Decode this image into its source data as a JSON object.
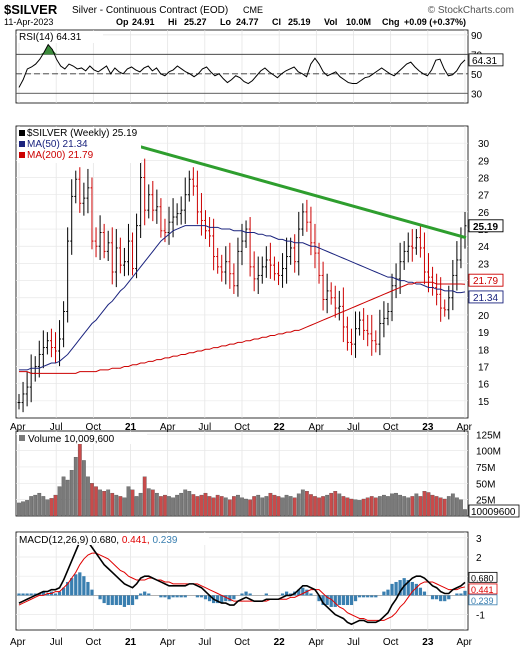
{
  "header": {
    "symbol": "$SILVER",
    "description": "Silver - Continuous Contract (EOD)",
    "exchange": "CME",
    "copyright": "© StockCharts.com",
    "date": "11-Apr-2023",
    "open_label": "Op",
    "open": "24.91",
    "high_label": "Hi",
    "high": "25.27",
    "low_label": "Lo",
    "low": "24.77",
    "close_label": "Cl",
    "close": "25.19",
    "vol_label": "Vol",
    "vol": "10.0M",
    "chg_label": "Chg",
    "chg": "+0.09 (+0.37%)"
  },
  "colors": {
    "up": "#000000",
    "down": "#cc0000",
    "ma50": "#1a237e",
    "ma200": "#cc0000",
    "trendline": "#2e9e2e",
    "rsi_fill": "#3c8c3c",
    "macd": "#000000",
    "signal": "#e00000",
    "hist": "#3a7fb0",
    "vol_up": "#7a7a7a",
    "vol_down": "#c84b4b"
  },
  "chart_data": [
    {
      "type": "line",
      "panel": "RSI",
      "legend": "RSI(14) 64.31",
      "current_label": "64.31",
      "ylim": [
        20,
        95
      ],
      "yticks": [
        "90",
        "70",
        "50",
        "30"
      ],
      "reference_lines": [
        70,
        50,
        30
      ],
      "series": [
        {
          "name": "RSI(14)",
          "values": [
            36,
            44,
            55,
            57,
            60,
            65,
            72,
            80,
            75,
            65,
            58,
            55,
            60,
            58,
            55,
            56,
            53,
            58,
            54,
            52,
            55,
            58,
            50,
            56,
            52,
            50,
            55,
            57,
            54,
            52,
            56,
            58,
            53,
            56,
            50,
            48,
            52,
            54,
            58,
            55,
            52,
            50,
            47,
            50,
            55,
            57,
            52,
            48,
            50,
            45,
            41,
            44,
            48,
            46,
            42,
            40,
            43,
            48,
            53,
            56,
            52,
            49,
            46,
            50,
            53,
            55,
            57,
            52,
            50,
            47,
            60,
            66,
            60,
            52,
            48,
            50,
            52,
            47,
            44,
            41,
            40,
            40,
            43,
            46,
            47,
            50,
            53,
            56,
            53,
            50,
            48,
            52,
            56,
            60,
            62,
            57,
            53,
            50,
            48,
            54,
            64,
            65,
            55,
            48,
            49,
            53,
            60,
            64.31
          ]
        }
      ]
    },
    {
      "type": "line",
      "panel": "Price",
      "legend": [
        "$SILVER (Weekly) 25.19",
        "MA(50) 21.34",
        "MA(200) 21.79"
      ],
      "ylim": [
        14,
        31
      ],
      "yticks": [
        "30",
        "29",
        "28",
        "27",
        "26",
        "25",
        "24",
        "23",
        "22",
        "21",
        "20",
        "19",
        "18",
        "17",
        "16",
        "15"
      ],
      "price_labels": [
        "25.19",
        "21.79",
        "21.34"
      ],
      "series": [
        {
          "name": "$SILVER (Weekly)",
          "values": [
            14.9,
            15.4,
            15.8,
            16.6,
            17.0,
            17.7,
            18.1,
            18.5,
            18.1,
            17.9,
            18.6,
            20.2,
            24.3,
            26.9,
            27.9,
            26.5,
            26.8,
            27.4,
            24.3,
            24.0,
            24.8,
            23.7,
            24.2,
            22.5,
            23.9,
            22.9,
            23.1,
            24.3,
            22.7,
            25.2,
            28.0,
            26.1,
            27.0,
            26.1,
            26.3,
            24.9,
            24.8,
            25.4,
            25.7,
            25.9,
            26.1,
            27.0,
            27.9,
            27.5,
            26.0,
            25.5,
            24.9,
            24.6,
            23.4,
            22.8,
            22.5,
            23.1,
            22.4,
            21.7,
            23.7,
            24.3,
            25.0,
            22.8,
            22.1,
            22.3,
            22.8,
            23.2,
            22.9,
            22.4,
            22.3,
            22.7,
            23.4,
            23.9,
            23.1,
            25.0,
            26.0,
            25.4,
            24.2,
            23.6,
            22.3,
            20.9,
            21.4,
            21.0,
            20.4,
            20.5,
            19.3,
            18.4,
            18.3,
            19.2,
            19.7,
            19.1,
            18.9,
            18.5,
            18.3,
            19.5,
            19.8,
            20.2,
            21.7,
            22.1,
            23.1,
            23.7,
            24.0,
            23.9,
            24.5,
            23.9,
            22.5,
            22.2,
            21.6,
            21.2,
            20.4,
            20.3,
            21.0,
            22.3,
            23.2,
            24.5,
            25.19
          ]
        },
        {
          "name": "MA(50)",
          "values": [
            16.8,
            16.8,
            16.8,
            16.9,
            16.9,
            16.9,
            17.0,
            17.1,
            17.2,
            17.2,
            17.3,
            17.5,
            17.7,
            18.0,
            18.3,
            18.6,
            18.9,
            19.2,
            19.5,
            19.7,
            20.0,
            20.3,
            20.6,
            20.8,
            21.1,
            21.4,
            21.6,
            21.9,
            22.2,
            22.5,
            22.8,
            23.1,
            23.4,
            23.7,
            24.0,
            24.3,
            24.5,
            24.7,
            24.9,
            25.0,
            25.1,
            25.2,
            25.2,
            25.2,
            25.2,
            25.2,
            25.2,
            25.1,
            25.1,
            25.1,
            25.0,
            25.0,
            25.0,
            24.9,
            24.9,
            24.9,
            24.8,
            24.8,
            24.8,
            24.7,
            24.7,
            24.6,
            24.6,
            24.5,
            24.4,
            24.4,
            24.3,
            24.3,
            24.2,
            24.2,
            24.2,
            24.1,
            24.0,
            24.0,
            23.9,
            23.8,
            23.7,
            23.6,
            23.5,
            23.4,
            23.3,
            23.2,
            23.1,
            23.0,
            22.9,
            22.8,
            22.7,
            22.6,
            22.5,
            22.4,
            22.3,
            22.2,
            22.2,
            22.1,
            22.0,
            22.0,
            21.9,
            21.9,
            21.8,
            21.8,
            21.7,
            21.6,
            21.6,
            21.5,
            21.5,
            21.4,
            21.4,
            21.4,
            21.3,
            21.3,
            21.34
          ]
        },
        {
          "name": "MA(200)",
          "values": [
            16.7,
            16.7,
            16.7,
            16.6,
            16.6,
            16.6,
            16.6,
            16.6,
            16.6,
            16.6,
            16.6,
            16.6,
            16.6,
            16.6,
            16.6,
            16.7,
            16.7,
            16.7,
            16.7,
            16.7,
            16.8,
            16.8,
            16.8,
            16.9,
            16.9,
            16.9,
            17.0,
            17.0,
            17.1,
            17.1,
            17.2,
            17.2,
            17.3,
            17.3,
            17.4,
            17.4,
            17.5,
            17.5,
            17.6,
            17.6,
            17.7,
            17.7,
            17.8,
            17.8,
            17.9,
            17.9,
            18.0,
            18.0,
            18.1,
            18.1,
            18.2,
            18.2,
            18.3,
            18.3,
            18.4,
            18.4,
            18.5,
            18.5,
            18.6,
            18.6,
            18.7,
            18.7,
            18.8,
            18.8,
            18.9,
            18.9,
            19.0,
            19.0,
            19.1,
            19.1,
            19.2,
            19.3,
            19.4,
            19.5,
            19.6,
            19.7,
            19.8,
            19.9,
            20.0,
            20.1,
            20.2,
            20.3,
            20.4,
            20.5,
            20.6,
            20.7,
            20.8,
            20.9,
            21.0,
            21.1,
            21.2,
            21.3,
            21.4,
            21.5,
            21.6,
            21.7,
            21.8,
            21.8,
            21.9,
            21.9,
            21.9,
            21.9,
            21.9,
            21.8,
            21.8,
            21.8,
            21.8,
            21.8,
            21.8,
            21.8,
            21.79
          ]
        },
        {
          "name": "trendline",
          "values": [
            30.0,
            24.5
          ]
        }
      ]
    },
    {
      "type": "bar",
      "panel": "Volume",
      "legend": "Volume 10,009,600",
      "ylim": [
        0,
        130
      ],
      "yticks": [
        "125M",
        "100M",
        "75M",
        "50M",
        "25M"
      ],
      "current_label": "10009600",
      "series": [
        {
          "name": "Volume (M)",
          "values": [
            20,
            22,
            24,
            30,
            32,
            35,
            30,
            25,
            27,
            32,
            45,
            60,
            55,
            70,
            90,
            120,
            85,
            60,
            50,
            45,
            40,
            38,
            40,
            35,
            32,
            30,
            28,
            45,
            40,
            30,
            35,
            60,
            42,
            40,
            35,
            30,
            32,
            30,
            28,
            32,
            35,
            40,
            38,
            33,
            30,
            32,
            35,
            30,
            28,
            32,
            30,
            28,
            25,
            30,
            32,
            28,
            26,
            25,
            30,
            32,
            28,
            30,
            35,
            32,
            30,
            28,
            32,
            30,
            28,
            34,
            40,
            38,
            33,
            30,
            28,
            30,
            32,
            35,
            38,
            34,
            30,
            28,
            26,
            25,
            24,
            26,
            28,
            30,
            28,
            30,
            32,
            30,
            34,
            35,
            32,
            30,
            28,
            30,
            34,
            30,
            38,
            36,
            32,
            30,
            28,
            26,
            30,
            34,
            28,
            25,
            10
          ]
        }
      ]
    },
    {
      "type": "line",
      "panel": "MACD",
      "legend": "MACD(12,26,9) 0.680, 0.441, 0.239",
      "legend_values": [
        "0.680",
        "0.441",
        "0.239"
      ],
      "ylim": [
        -1.8,
        3.3
      ],
      "yticks": [
        "3",
        "2",
        "1",
        "-1"
      ],
      "price_labels": [
        "0.680",
        "0.441",
        "0.239"
      ],
      "series": [
        {
          "name": "MACD",
          "values": [
            -0.4,
            -0.3,
            -0.2,
            -0.1,
            0.0,
            0.1,
            0.2,
            0.2,
            0.3,
            0.3,
            0.4,
            0.8,
            1.3,
            1.8,
            2.3,
            2.8,
            2.9,
            2.8,
            2.5,
            2.2,
            1.9,
            1.6,
            1.4,
            1.2,
            1.0,
            0.8,
            0.6,
            0.5,
            0.4,
            0.6,
            0.9,
            1.0,
            1.0,
            0.9,
            0.8,
            0.7,
            0.6,
            0.5,
            0.5,
            0.5,
            0.5,
            0.5,
            0.6,
            0.6,
            0.5,
            0.4,
            0.2,
            0.0,
            -0.2,
            -0.3,
            -0.4,
            -0.4,
            -0.5,
            -0.5,
            -0.3,
            -0.2,
            -0.1,
            -0.2,
            -0.3,
            -0.3,
            -0.3,
            -0.2,
            -0.2,
            -0.2,
            -0.2,
            -0.1,
            0.0,
            0.0,
            0.1,
            0.3,
            0.5,
            0.5,
            0.4,
            0.3,
            0.0,
            -0.4,
            -0.6,
            -0.8,
            -1.0,
            -1.1,
            -1.2,
            -1.4,
            -1.5,
            -1.4,
            -1.3,
            -1.3,
            -1.4,
            -1.4,
            -1.4,
            -1.3,
            -1.1,
            -0.9,
            -0.5,
            -0.2,
            0.2,
            0.5,
            0.7,
            0.9,
            1.0,
            1.0,
            0.9,
            0.7,
            0.5,
            0.4,
            0.2,
            0.1,
            0.1,
            0.3,
            0.4,
            0.5,
            0.68
          ]
        },
        {
          "name": "Signal",
          "values": [
            -0.5,
            -0.4,
            -0.3,
            -0.2,
            -0.1,
            0.0,
            0.0,
            0.1,
            0.1,
            0.2,
            0.2,
            0.4,
            0.6,
            0.9,
            1.2,
            1.6,
            1.9,
            2.1,
            2.2,
            2.2,
            2.1,
            2.0,
            1.9,
            1.7,
            1.5,
            1.3,
            1.2,
            1.0,
            0.9,
            0.8,
            0.8,
            0.8,
            0.9,
            0.9,
            0.8,
            0.8,
            0.7,
            0.7,
            0.6,
            0.6,
            0.6,
            0.6,
            0.6,
            0.6,
            0.6,
            0.5,
            0.4,
            0.3,
            0.2,
            0.1,
            0.0,
            -0.1,
            -0.2,
            -0.3,
            -0.3,
            -0.3,
            -0.3,
            -0.3,
            -0.3,
            -0.3,
            -0.3,
            -0.3,
            -0.2,
            -0.2,
            -0.2,
            -0.2,
            -0.2,
            -0.1,
            -0.1,
            0.0,
            0.1,
            0.2,
            0.3,
            0.3,
            0.3,
            0.1,
            -0.1,
            -0.2,
            -0.4,
            -0.6,
            -0.7,
            -0.9,
            -1.0,
            -1.1,
            -1.2,
            -1.2,
            -1.3,
            -1.3,
            -1.3,
            -1.3,
            -1.3,
            -1.2,
            -1.1,
            -0.9,
            -0.6,
            -0.4,
            -0.1,
            0.2,
            0.4,
            0.6,
            0.7,
            0.7,
            0.7,
            0.6,
            0.5,
            0.4,
            0.3,
            0.3,
            0.3,
            0.4,
            0.441
          ]
        },
        {
          "name": "Histogram",
          "values": [
            0.1,
            0.1,
            0.1,
            0.1,
            0.1,
            0.1,
            0.2,
            0.1,
            0.2,
            0.1,
            0.2,
            0.4,
            0.7,
            0.9,
            1.1,
            1.2,
            1.0,
            0.7,
            0.3,
            0.0,
            -0.2,
            -0.4,
            -0.5,
            -0.5,
            -0.5,
            -0.5,
            -0.6,
            -0.5,
            -0.5,
            -0.2,
            0.1,
            0.2,
            0.1,
            0.0,
            0.0,
            -0.1,
            -0.1,
            -0.2,
            -0.1,
            -0.1,
            -0.1,
            -0.1,
            0.0,
            0.0,
            -0.1,
            -0.1,
            -0.2,
            -0.3,
            -0.4,
            -0.4,
            -0.4,
            -0.3,
            -0.3,
            -0.2,
            0.0,
            0.1,
            0.2,
            0.1,
            0.0,
            0.0,
            0.0,
            0.1,
            0.0,
            0.0,
            0.0,
            0.1,
            0.2,
            0.1,
            0.2,
            0.3,
            0.4,
            0.3,
            0.1,
            0.0,
            -0.3,
            -0.5,
            -0.5,
            -0.6,
            -0.6,
            -0.5,
            -0.5,
            -0.5,
            -0.5,
            -0.3,
            -0.1,
            -0.1,
            -0.1,
            -0.1,
            -0.1,
            0.0,
            0.2,
            0.3,
            0.6,
            0.7,
            0.8,
            0.9,
            0.8,
            0.7,
            0.6,
            0.4,
            0.2,
            0.0,
            -0.2,
            -0.2,
            -0.3,
            -0.3,
            -0.2,
            0.0,
            0.1,
            0.1,
            0.239
          ]
        }
      ]
    }
  ],
  "x_axis": {
    "ticks": [
      {
        "label": "Apr",
        "idx": 0
      },
      {
        "label": "Jul",
        "idx": 13
      },
      {
        "label": "Oct",
        "idx": 26
      },
      {
        "label": "21",
        "idx": 39,
        "bold": true
      },
      {
        "label": "Apr",
        "idx": 52
      },
      {
        "label": "Jul",
        "idx": 65
      },
      {
        "label": "Oct",
        "idx": 78
      },
      {
        "label": "22",
        "idx": 91,
        "bold": true
      },
      {
        "label": "Apr",
        "idx": 104
      },
      {
        "label": "Jul",
        "idx": 117
      },
      {
        "label": "Oct",
        "idx": 130
      },
      {
        "label": "23",
        "idx": 143,
        "bold": true
      },
      {
        "label": "Apr",
        "idx": 156
      }
    ]
  }
}
